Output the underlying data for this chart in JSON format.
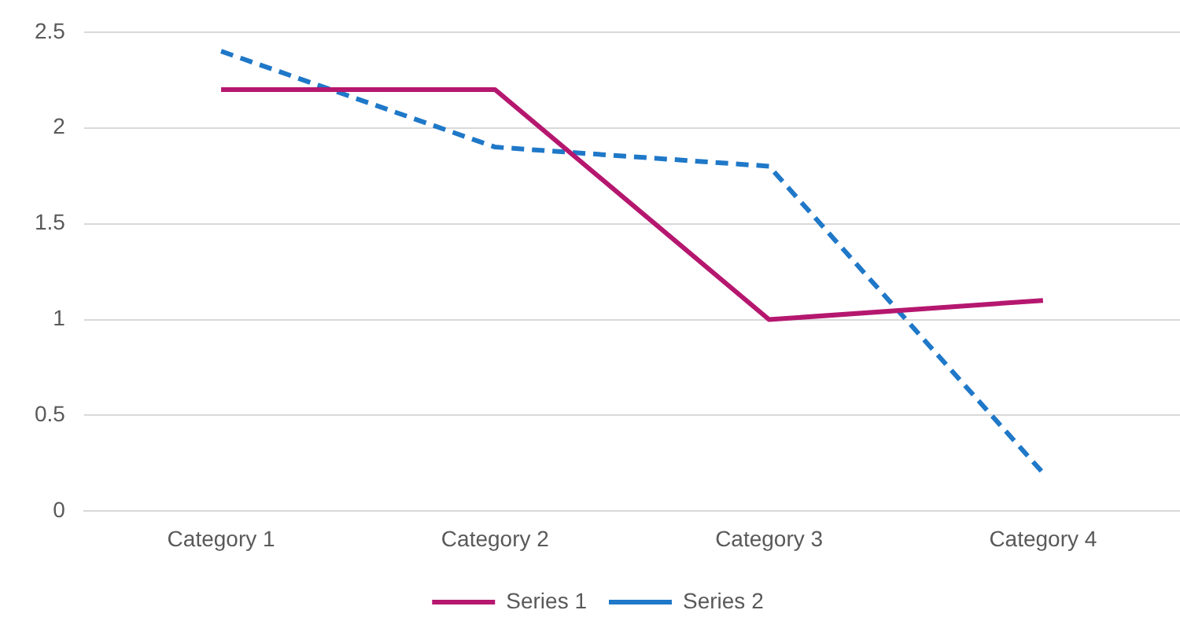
{
  "chart_data": {
    "type": "line",
    "categories": [
      "Category 1",
      "Category 2",
      "Category 3",
      "Category 4"
    ],
    "series": [
      {
        "name": "Series 1",
        "color": "#b5176f",
        "values": [
          2.2,
          2.2,
          1.0,
          1.1
        ],
        "line_style": "solid"
      },
      {
        "name": "Series 2",
        "color": "#1f78c8",
        "values": [
          2.4,
          1.9,
          1.8,
          0.2
        ],
        "line_style": "dashed"
      }
    ],
    "ylim": [
      0,
      2.5
    ],
    "yticks": [
      0,
      0.5,
      1,
      1.5,
      2,
      2.5
    ],
    "grid": "y",
    "legend": "bottom",
    "marker": "none"
  }
}
